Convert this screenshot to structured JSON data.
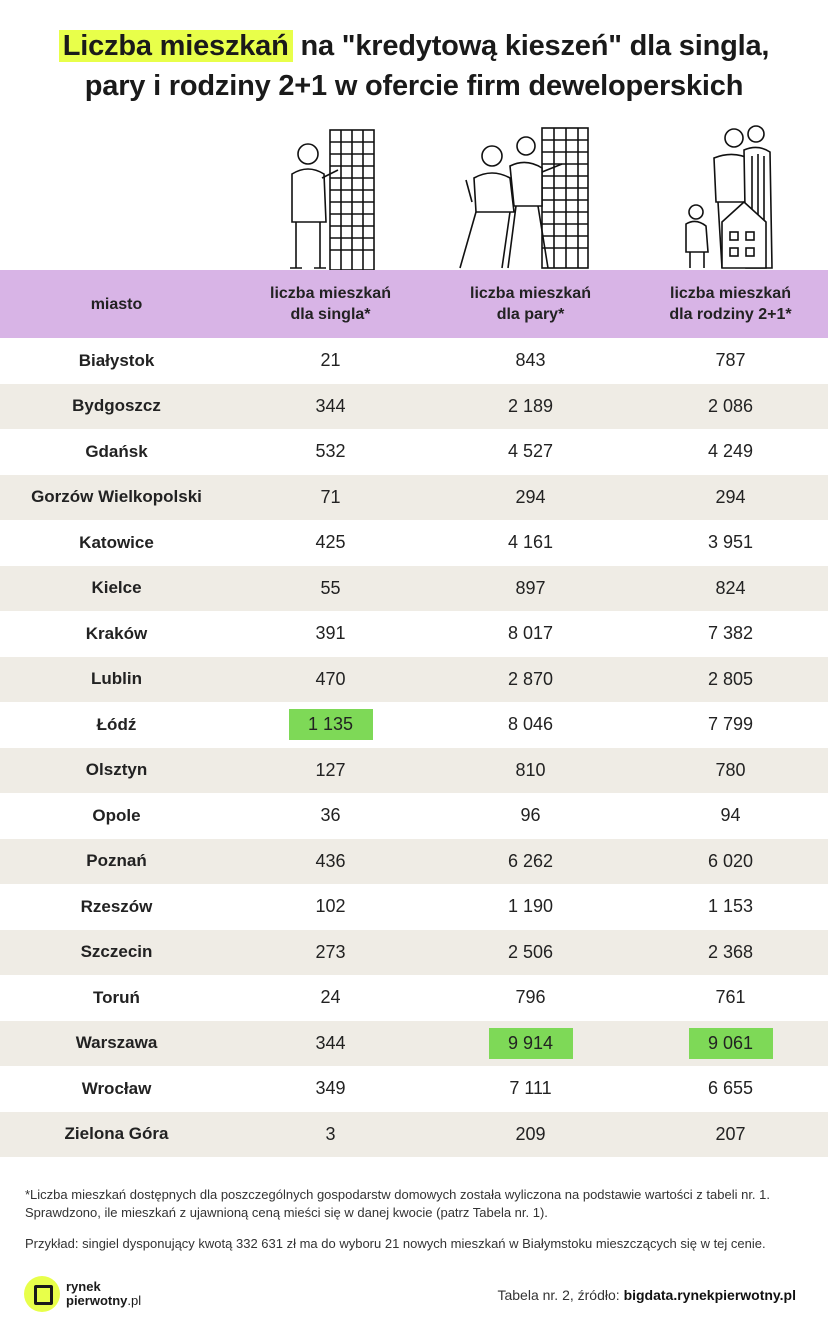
{
  "title": {
    "highlight": "Liczba mieszkań",
    "rest_line1": " na \"kredytową kieszeń\" dla singla,",
    "line2": "pary i rodziny 2+1 w ofercie firm deweloperskich"
  },
  "chart_data": {
    "type": "table",
    "columns": [
      "miasto",
      "liczba mieszkań dla singla*",
      "liczba mieszkań dla pary*",
      "liczba mieszkań dla rodziny 2+1*"
    ],
    "rows": [
      {
        "city": "Białystok",
        "single": "21",
        "couple": "843",
        "family": "787"
      },
      {
        "city": "Bydgoszcz",
        "single": "344",
        "couple": "2 189",
        "family": "2 086"
      },
      {
        "city": "Gdańsk",
        "single": "532",
        "couple": "4 527",
        "family": "4 249"
      },
      {
        "city": "Gorzów Wielkopolski",
        "single": "71",
        "couple": "294",
        "family": "294"
      },
      {
        "city": "Katowice",
        "single": "425",
        "couple": "4 161",
        "family": "3 951"
      },
      {
        "city": "Kielce",
        "single": "55",
        "couple": "897",
        "family": "824"
      },
      {
        "city": "Kraków",
        "single": "391",
        "couple": "8 017",
        "family": "7 382"
      },
      {
        "city": "Lublin",
        "single": "470",
        "couple": "2 870",
        "family": "2 805"
      },
      {
        "city": "Łódź",
        "single": "1 135",
        "couple": "8 046",
        "family": "7 799"
      },
      {
        "city": "Olsztyn",
        "single": "127",
        "couple": "810",
        "family": "780"
      },
      {
        "city": "Opole",
        "single": "36",
        "couple": "96",
        "family": "94"
      },
      {
        "city": "Poznań",
        "single": "436",
        "couple": "6 262",
        "family": "6 020"
      },
      {
        "city": "Rzeszów",
        "single": "102",
        "couple": "1 190",
        "family": "1 153"
      },
      {
        "city": "Szczecin",
        "single": "273",
        "couple": "2 506",
        "family": "2 368"
      },
      {
        "city": "Toruń",
        "single": "24",
        "couple": "796",
        "family": "761"
      },
      {
        "city": "Warszawa",
        "single": "344",
        "couple": "9 914",
        "family": "9 061"
      },
      {
        "city": "Wrocław",
        "single": "349",
        "couple": "7 111",
        "family": "6 655"
      },
      {
        "city": "Zielona Góra",
        "single": "3",
        "couple": "209",
        "family": "207"
      }
    ],
    "highlighted": [
      {
        "city": "Łódź",
        "column": "single"
      },
      {
        "city": "Warszawa",
        "column": "couple"
      },
      {
        "city": "Warszawa",
        "column": "family"
      }
    ],
    "highlight_color": "#7ed957",
    "header_color": "#d8b4e6",
    "stripe_color": "#efece5"
  },
  "header": {
    "city": "miasto",
    "single": [
      "liczba mieszkań",
      "dla singla*"
    ],
    "couple": [
      "liczba mieszkań",
      "dla pary*"
    ],
    "family": [
      "liczba mieszkań",
      "dla rodziny 2+1*"
    ]
  },
  "footnote": "*Liczba mieszkań dostępnych dla poszczególnych gospodarstw domowych została wyliczona na podstawie wartości z tabeli nr. 1. Sprawdzono, ile mieszkań z ujawnioną ceną mieści się w danej kwocie (patrz Tabela nr. 1).",
  "example": "Przykład: singiel dysponujący kwotą 332 631 zł ma do wyboru 21 nowych mieszkań w Białymstoku mieszczących się w tej cenie.",
  "logo": {
    "line1": "rynek",
    "line2": "pierwotny",
    "suffix": ".pl"
  },
  "source": {
    "prefix": "Tabela nr. 2, źródło: ",
    "link": "bigdata.rynekpierwotny.pl"
  },
  "accent_color": "#e8ff4a"
}
